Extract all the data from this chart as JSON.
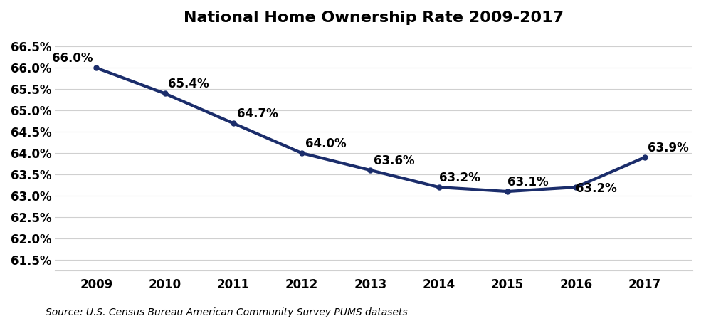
{
  "title": "National Home Ownership Rate 2009-2017",
  "years": [
    2009,
    2010,
    2011,
    2012,
    2013,
    2014,
    2015,
    2016,
    2017
  ],
  "values": [
    66.0,
    65.4,
    64.7,
    64.0,
    63.6,
    63.2,
    63.1,
    63.2,
    63.9
  ],
  "labels": [
    "66.0%",
    "65.4%",
    "64.7%",
    "64.0%",
    "63.6%",
    "63.2%",
    "63.1%",
    "63.2%",
    "63.9%"
  ],
  "label_x_offsets": [
    -0.05,
    0.05,
    0.05,
    0.05,
    0.05,
    0.0,
    0.0,
    0.0,
    0.05
  ],
  "label_y_offsets": [
    0.07,
    0.07,
    0.07,
    0.07,
    0.07,
    0.07,
    0.07,
    -0.18,
    0.07
  ],
  "label_ha": [
    "right",
    "left",
    "left",
    "left",
    "left",
    "left",
    "left",
    "left",
    "left"
  ],
  "line_color": "#1b2d6b",
  "line_width": 3.0,
  "marker_size": 5,
  "ylim_min": 61.25,
  "ylim_max": 66.75,
  "ytick_values": [
    61.5,
    62.0,
    62.5,
    63.0,
    63.5,
    64.0,
    64.5,
    65.0,
    65.5,
    66.0,
    66.5
  ],
  "xlim_min": 2008.4,
  "xlim_max": 2017.7,
  "background_color": "#ffffff",
  "grid_color": "#d0d0d0",
  "title_fontsize": 16,
  "tick_fontsize": 12,
  "label_fontsize": 12,
  "source_text": "Source: U.S. Census Bureau American Community Survey PUMS datasets",
  "source_fontsize": 10
}
